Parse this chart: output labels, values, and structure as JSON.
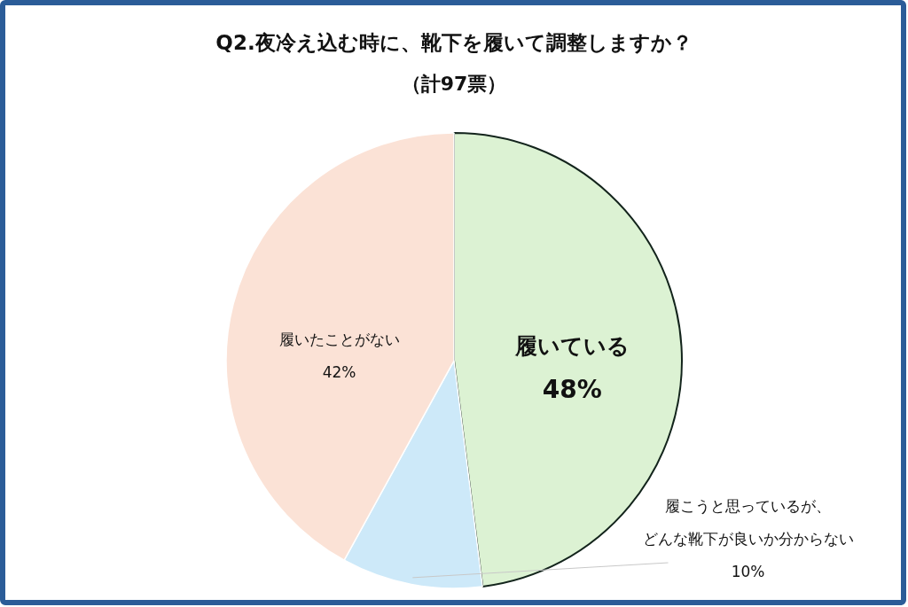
{
  "chart_data": {
    "type": "pie",
    "title": "Q2.夜冷え込む時に、靴下を履いて調整しますか？",
    "subtitle": "（計97票）",
    "categories": [
      "履いている",
      "履こうと思っているが、どんな靴下が良いか分からない",
      "履いたことがない"
    ],
    "values": [
      48,
      10,
      42
    ],
    "colors": [
      "#dcf2d3",
      "#cde9f9",
      "#fbe2d6"
    ],
    "value_labels": [
      "48%",
      "10%",
      "42%"
    ],
    "legend": false
  }
}
